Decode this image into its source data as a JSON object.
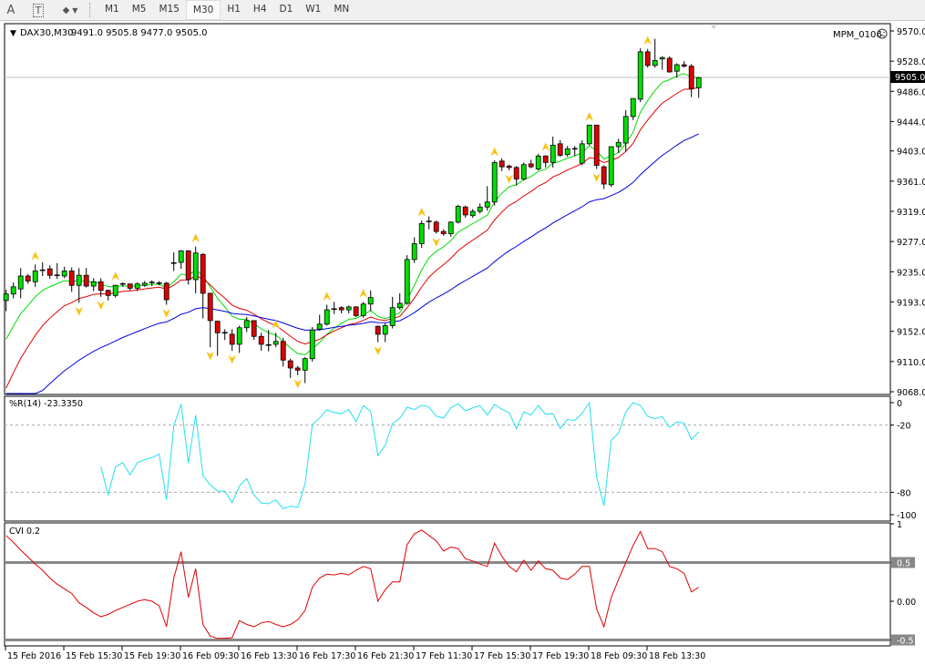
{
  "toolbar": {
    "text_tool": "A",
    "textlabel_tool": "T",
    "shapes_tool": "◆",
    "timeframes": [
      "M1",
      "M5",
      "M15",
      "M30",
      "H1",
      "H4",
      "D1",
      "W1",
      "MN"
    ],
    "active_timeframe": "M30"
  },
  "chart": {
    "symbol_label": "DAX30,M30",
    "ohlc_label": "9491.0 9505.8 9477.0 9505.0",
    "ea_label": "MPM_0106",
    "ea_status_icon": "sad-face-icon",
    "current_price": "9505.0",
    "price_ticks": [
      "9570.0",
      "9528.0",
      "9486.0",
      "9444.0",
      "9403.0",
      "9361.0",
      "9319.0",
      "9277.0",
      "9235.0",
      "9193.0",
      "9152.0",
      "9110.0",
      "9068.0"
    ],
    "time_ticks": [
      "15 Feb 2016",
      "15 Feb 15:30",
      "15 Feb 19:30",
      "16 Feb 09:30",
      "16 Feb 13:30",
      "16 Feb 17:30",
      "16 Feb 21:30",
      "17 Feb 11:30",
      "17 Feb 15:30",
      "17 Feb 19:30",
      "18 Feb 09:30",
      "18 Feb 13:30"
    ],
    "colors": {
      "bull": "#00e000",
      "bear": "#e00000",
      "wick": "#000000",
      "ma_fast": "#00dd00",
      "ma_mid": "#e00000",
      "ma_slow": "#0000e0",
      "fractal": "#ffc000",
      "wpr": "#20e0f0",
      "cvi": "#e00000"
    }
  },
  "chart_data": {
    "type": "candlestick",
    "ylim": [
      9068,
      9570
    ],
    "candles": [
      [
        9195,
        9210,
        9180,
        9204
      ],
      [
        9204,
        9220,
        9198,
        9214
      ],
      [
        9211,
        9240,
        9198,
        9229
      ],
      [
        9229,
        9232,
        9218,
        9222
      ],
      [
        9221,
        9245,
        9214,
        9236
      ],
      [
        9237,
        9248,
        9229,
        9236
      ],
      [
        9239,
        9244,
        9225,
        9230
      ],
      [
        9230,
        9247,
        9225,
        9230
      ],
      [
        9229,
        9242,
        9226,
        9236
      ],
      [
        9236,
        9241,
        9207,
        9216
      ],
      [
        9216,
        9240,
        9192,
        9230
      ],
      [
        9230,
        9240,
        9213,
        9215
      ],
      [
        9215,
        9226,
        9208,
        9221
      ],
      [
        9221,
        9226,
        9200,
        9209
      ],
      [
        9209,
        9210,
        9195,
        9202
      ],
      [
        9202,
        9217,
        9199,
        9216
      ],
      [
        9217,
        9220,
        9214,
        9218
      ],
      [
        9218,
        9218,
        9209,
        9212
      ],
      [
        9212,
        9220,
        9208,
        9218
      ],
      [
        9216,
        9222,
        9214,
        9219
      ],
      [
        9220,
        9223,
        9215,
        9220
      ],
      [
        9219,
        9222,
        9216,
        9219
      ],
      [
        9219,
        9221,
        9189,
        9196
      ],
      [
        9247,
        9262,
        9236,
        9247
      ],
      [
        9248,
        9265,
        9239,
        9264
      ],
      [
        9264,
        9265,
        9217,
        9224
      ],
      [
        9224,
        9270,
        9205,
        9261
      ],
      [
        9259,
        9261,
        9170,
        9205
      ],
      [
        9205,
        9205,
        9130,
        9167
      ],
      [
        9166,
        9167,
        9118,
        9150
      ],
      [
        9150,
        9155,
        9140,
        9150
      ],
      [
        9148,
        9155,
        9125,
        9134
      ],
      [
        9134,
        9160,
        9122,
        9157
      ],
      [
        9157,
        9172,
        9151,
        9167
      ],
      [
        9167,
        9167,
        9140,
        9145
      ],
      [
        9145,
        9150,
        9125,
        9134
      ],
      [
        9132,
        9154,
        9124,
        9133
      ],
      [
        9134,
        9150,
        9130,
        9138
      ],
      [
        9138,
        9143,
        9103,
        9112
      ],
      [
        9111,
        9114,
        9087,
        9101
      ],
      [
        9101,
        9104,
        9091,
        9098
      ],
      [
        9098,
        9116,
        9080,
        9114
      ],
      [
        9114,
        9158,
        9110,
        9154
      ],
      [
        9155,
        9175,
        9153,
        9162
      ],
      [
        9162,
        9189,
        9160,
        9182
      ],
      [
        9183,
        9193,
        9176,
        9183
      ],
      [
        9185,
        9187,
        9177,
        9182
      ],
      [
        9182,
        9188,
        9177,
        9186
      ],
      [
        9186,
        9187,
        9172,
        9174
      ],
      [
        9174,
        9193,
        9171,
        9190
      ],
      [
        9190,
        9209,
        9180,
        9199
      ],
      [
        9159,
        9160,
        9137,
        9148
      ],
      [
        9148,
        9163,
        9137,
        9160
      ],
      [
        9160,
        9200,
        9156,
        9185
      ],
      [
        9185,
        9205,
        9182,
        9191
      ],
      [
        9191,
        9258,
        9189,
        9252
      ],
      [
        9252,
        9283,
        9247,
        9274
      ],
      [
        9274,
        9306,
        9268,
        9302
      ],
      [
        9305,
        9312,
        9294,
        9305
      ],
      [
        9304,
        9306,
        9288,
        9291
      ],
      [
        9291,
        9294,
        9285,
        9288
      ],
      [
        9288,
        9305,
        9284,
        9304
      ],
      [
        9304,
        9328,
        9302,
        9326
      ],
      [
        9325,
        9327,
        9310,
        9314
      ],
      [
        9313,
        9322,
        9310,
        9319
      ],
      [
        9319,
        9330,
        9316,
        9325
      ],
      [
        9325,
        9354,
        9320,
        9332
      ],
      [
        9332,
        9390,
        9327,
        9387
      ],
      [
        9389,
        9393,
        9375,
        9381
      ],
      [
        9382,
        9384,
        9376,
        9380
      ],
      [
        9380,
        9382,
        9355,
        9364
      ],
      [
        9364,
        9387,
        9362,
        9384
      ],
      [
        9385,
        9391,
        9379,
        9381
      ],
      [
        9378,
        9399,
        9376,
        9396
      ],
      [
        9396,
        9397,
        9380,
        9387
      ],
      [
        9387,
        9423,
        9380,
        9411
      ],
      [
        9413,
        9418,
        9395,
        9397
      ],
      [
        9398,
        9410,
        9395,
        9406
      ],
      [
        9406,
        9410,
        9396,
        9406
      ],
      [
        9386,
        9418,
        9383,
        9413
      ],
      [
        9413,
        9439,
        9411,
        9439
      ],
      [
        9439,
        9439,
        9378,
        9383
      ],
      [
        9381,
        9383,
        9350,
        9357
      ],
      [
        9356,
        9409,
        9353,
        9409
      ],
      [
        9409,
        9420,
        9400,
        9415
      ],
      [
        9414,
        9460,
        9402,
        9451
      ],
      [
        9451,
        9476,
        9446,
        9476
      ],
      [
        9475,
        9546,
        9471,
        9541
      ],
      [
        9541,
        9545,
        9519,
        9522
      ],
      [
        9522,
        9559,
        9519,
        9529
      ],
      [
        9531,
        9535,
        9516,
        9533
      ],
      [
        9532,
        9535,
        9512,
        9513
      ],
      [
        9514,
        9525,
        9505,
        9523
      ],
      [
        9523,
        9528,
        9519,
        9521
      ],
      [
        9521,
        9524,
        9478,
        9490
      ],
      [
        9491,
        9506,
        9477,
        9505
      ]
    ],
    "moving_averages": [
      {
        "name": "fast",
        "color_key": "ma_fast",
        "alpha": 0.25,
        "seed": 9120
      },
      {
        "name": "mid",
        "color_key": "ma_mid",
        "alpha": 0.15,
        "seed": 9050
      },
      {
        "name": "slow",
        "color_key": "ma_slow",
        "alpha": 0.06,
        "seed": 9000
      }
    ],
    "fractals_up": [
      4,
      15,
      26,
      37,
      44,
      49,
      57,
      67,
      74,
      80,
      88
    ],
    "fractals_down": [
      10,
      13,
      22,
      28,
      31,
      40,
      51,
      59,
      69,
      81
    ],
    "wpr": {
      "label": "%R(14) -23.3350",
      "period": 14,
      "ticks": [
        "0",
        "-20",
        "-80",
        "-100"
      ],
      "levels": [
        -20,
        -80
      ],
      "ylim": [
        -100,
        0
      ]
    },
    "cvi": {
      "label": "CVI 0.2",
      "ticks": [
        "1",
        "0.5",
        "0.00",
        "-0.5"
      ],
      "levels": [
        0.5,
        -0.5
      ],
      "ylim": [
        -0.6,
        1.05
      ],
      "values": [
        0.85,
        0.76,
        0.66,
        0.57,
        0.48,
        0.4,
        0.3,
        0.22,
        0.16,
        0.1,
        -0.02,
        -0.08,
        -0.15,
        -0.2,
        -0.17,
        -0.12,
        -0.08,
        -0.04,
        0.0,
        0.02,
        0.0,
        -0.06,
        -0.33,
        0.3,
        0.64,
        0.05,
        0.42,
        -0.3,
        -0.45,
        -0.48,
        -0.48,
        -0.47,
        -0.25,
        -0.3,
        -0.33,
        -0.28,
        -0.26,
        -0.3,
        -0.33,
        -0.3,
        -0.24,
        -0.12,
        0.18,
        0.3,
        0.35,
        0.34,
        0.36,
        0.34,
        0.4,
        0.45,
        0.42,
        0.0,
        0.15,
        0.25,
        0.25,
        0.73,
        0.87,
        0.92,
        0.85,
        0.78,
        0.65,
        0.7,
        0.68,
        0.55,
        0.52,
        0.48,
        0.45,
        0.75,
        0.58,
        0.45,
        0.38,
        0.53,
        0.4,
        0.52,
        0.42,
        0.4,
        0.3,
        0.28,
        0.35,
        0.45,
        0.45,
        -0.1,
        -0.33,
        0.05,
        0.28,
        0.5,
        0.72,
        0.9,
        0.68,
        0.68,
        0.64,
        0.45,
        0.42,
        0.36,
        0.12,
        0.18
      ]
    }
  }
}
